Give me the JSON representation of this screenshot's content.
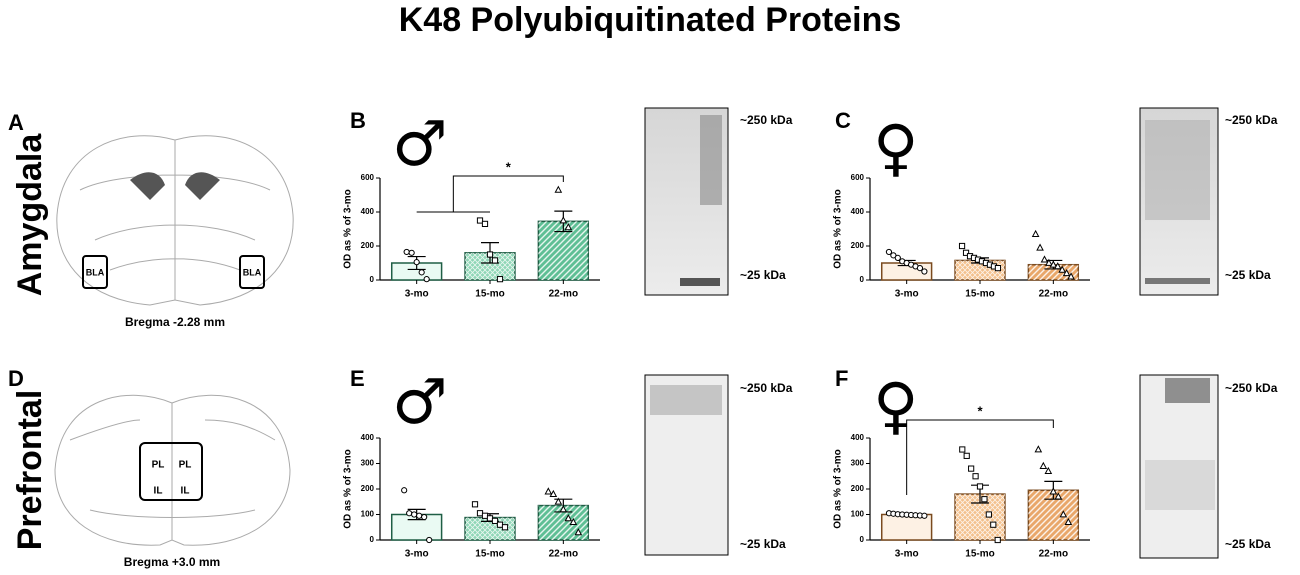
{
  "title": "K48 Polyubiquitinated Proteins",
  "rows": [
    "Amygdala",
    "Prefrontal"
  ],
  "atlas": [
    {
      "panel": "A",
      "bregma": "Bregma -2.28 mm",
      "regions": [
        "BLA",
        "BLA"
      ]
    },
    {
      "panel": "D",
      "bregma": "Bregma +3.0 mm",
      "regions": [
        "PL",
        "PL",
        "IL",
        "IL"
      ]
    }
  ],
  "blots": [
    {
      "markers": [
        "~250 kDa",
        "~25 kDa"
      ]
    },
    {
      "markers": [
        "~250 kDa",
        "~25 kDa"
      ]
    },
    {
      "markers": [
        "~250 kDa",
        "~25 kDa"
      ]
    },
    {
      "markers": [
        "~250 kDa",
        "~25 kDa"
      ]
    }
  ],
  "chart_data": [
    {
      "type": "bar",
      "panel": "B",
      "sex": "♂",
      "ylabel": "OD as % of 3-mo",
      "significance": "*",
      "categories": [
        "3-mo",
        "15-mo",
        "22-mo"
      ],
      "values": [
        100,
        160,
        345
      ],
      "errors": [
        38,
        60,
        60
      ],
      "points": [
        [
          165,
          160,
          105,
          45,
          5
        ],
        [
          350,
          330,
          150,
          115,
          5
        ],
        [
          530,
          350,
          310
        ]
      ],
      "ylim": [
        0,
        600
      ],
      "yticks": [
        0,
        200,
        400,
        600
      ],
      "colors": [
        "#eafaf3",
        "#8fd6b6",
        "#5fbf95"
      ],
      "edge": "#1f5e45",
      "patterns": [
        "none",
        "crosshatch",
        "diagonal"
      ],
      "markers": [
        "circle",
        "square",
        "triangle"
      ]
    },
    {
      "type": "bar",
      "panel": "C",
      "sex": "♀",
      "ylabel": "OD as % of 3-mo",
      "categories": [
        "3-mo",
        "15-mo",
        "22-mo"
      ],
      "values": [
        100,
        115,
        90
      ],
      "errors": [
        15,
        15,
        25
      ],
      "points": [
        [
          165,
          145,
          130,
          110,
          100,
          90,
          80,
          70,
          50
        ],
        [
          200,
          160,
          140,
          130,
          120,
          110,
          100,
          90,
          80,
          70
        ],
        [
          270,
          190,
          120,
          100,
          90,
          80,
          60,
          40,
          20
        ]
      ],
      "ylim": [
        0,
        600
      ],
      "yticks": [
        0,
        200,
        400,
        600
      ],
      "colors": [
        "#fdf1e4",
        "#f3c08c",
        "#e9a76a"
      ],
      "edge": "#7a4a1e",
      "patterns": [
        "none",
        "crosshatch",
        "diagonal"
      ],
      "markers": [
        "circle",
        "square",
        "triangle"
      ]
    },
    {
      "type": "bar",
      "panel": "E",
      "sex": "♂",
      "ylabel": "OD as % of 3-mo",
      "categories": [
        "3-mo",
        "15-mo",
        "22-mo"
      ],
      "values": [
        100,
        88,
        135
      ],
      "errors": [
        20,
        15,
        25
      ],
      "points": [
        [
          195,
          105,
          100,
          95,
          90,
          0
        ],
        [
          140,
          105,
          95,
          85,
          75,
          60,
          50
        ],
        [
          190,
          180,
          150,
          120,
          85,
          70,
          30
        ]
      ],
      "ylim": [
        0,
        400
      ],
      "yticks": [
        0,
        100,
        200,
        300,
        400
      ],
      "colors": [
        "#eafaf3",
        "#8fd6b6",
        "#5fbf95"
      ],
      "edge": "#1f5e45",
      "patterns": [
        "none",
        "crosshatch",
        "diagonal"
      ],
      "markers": [
        "circle",
        "square",
        "triangle"
      ]
    },
    {
      "type": "bar",
      "panel": "F",
      "sex": "♀",
      "ylabel": "OD as % of 3-mo",
      "significance": "*",
      "categories": [
        "3-mo",
        "15-mo",
        "22-mo"
      ],
      "values": [
        100,
        180,
        195
      ],
      "errors": [
        3,
        35,
        35
      ],
      "points": [
        [
          105,
          103,
          101,
          100,
          99,
          98,
          97,
          96,
          95
        ],
        [
          355,
          330,
          280,
          250,
          210,
          160,
          100,
          60,
          0
        ],
        [
          355,
          290,
          270,
          190,
          170,
          100,
          70
        ]
      ],
      "ylim": [
        0,
        400
      ],
      "yticks": [
        0,
        100,
        200,
        300,
        400
      ],
      "colors": [
        "#fdf1e4",
        "#f3c08c",
        "#e9a76a"
      ],
      "edge": "#7a4a1e",
      "patterns": [
        "none",
        "crosshatch",
        "diagonal"
      ],
      "markers": [
        "circle",
        "square",
        "triangle"
      ]
    }
  ]
}
